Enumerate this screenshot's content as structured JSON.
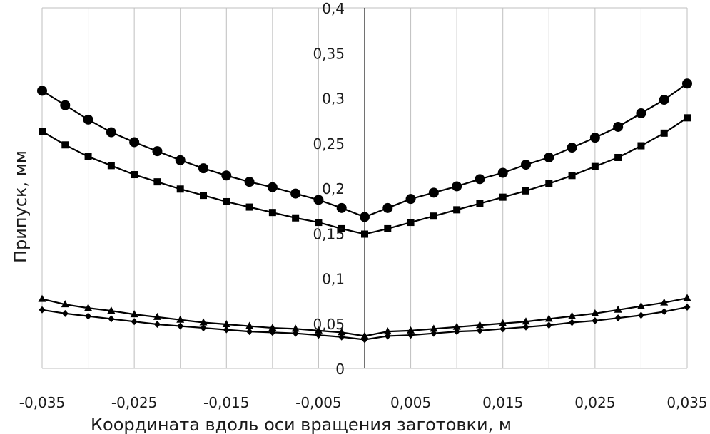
{
  "chart_data": {
    "type": "line",
    "xlabel": "Координата вдоль оси вращения заготовки, м",
    "ylabel": "Припуск, мм",
    "xlim": [
      -0.035,
      0.035
    ],
    "ylim": [
      0,
      0.4
    ],
    "grid": "vertical",
    "legend": "none",
    "x_ticks": [
      "-0,035",
      "-0,025",
      "-0,015",
      "-0,005",
      "0,005",
      "0,015",
      "0,025",
      "0,035"
    ],
    "y_ticks": [
      "0",
      "0,05",
      "0,1",
      "0,15",
      "0,2",
      "0,25",
      "0,3",
      "0,35",
      "0,4"
    ],
    "x": [
      -0.035,
      -0.0325,
      -0.03,
      -0.0275,
      -0.025,
      -0.0225,
      -0.02,
      -0.0175,
      -0.015,
      -0.0125,
      -0.01,
      -0.0075,
      -0.005,
      -0.0025,
      0,
      0.0025,
      0.005,
      0.0075,
      0.01,
      0.0125,
      0.015,
      0.0175,
      0.02,
      0.0225,
      0.025,
      0.0275,
      0.03,
      0.0325,
      0.035
    ],
    "series": [
      {
        "marker": "circle",
        "values": [
          0.308,
          0.292,
          0.276,
          0.262,
          0.251,
          0.241,
          0.231,
          0.222,
          0.214,
          0.207,
          0.201,
          0.194,
          0.187,
          0.178,
          0.168,
          0.178,
          0.188,
          0.195,
          0.202,
          0.21,
          0.217,
          0.226,
          0.234,
          0.245,
          0.256,
          0.268,
          0.283,
          0.298,
          0.316
        ]
      },
      {
        "marker": "square",
        "values": [
          0.263,
          0.248,
          0.235,
          0.225,
          0.215,
          0.207,
          0.199,
          0.192,
          0.185,
          0.179,
          0.173,
          0.167,
          0.162,
          0.155,
          0.149,
          0.155,
          0.162,
          0.169,
          0.176,
          0.183,
          0.19,
          0.197,
          0.205,
          0.214,
          0.224,
          0.234,
          0.247,
          0.261,
          0.278
        ]
      },
      {
        "marker": "triangle",
        "values": [
          0.077,
          0.071,
          0.067,
          0.064,
          0.06,
          0.057,
          0.054,
          0.051,
          0.049,
          0.047,
          0.045,
          0.044,
          0.042,
          0.04,
          0.036,
          0.041,
          0.042,
          0.044,
          0.046,
          0.048,
          0.05,
          0.052,
          0.055,
          0.058,
          0.061,
          0.065,
          0.069,
          0.073,
          0.078
        ]
      },
      {
        "marker": "diamond",
        "values": [
          0.065,
          0.061,
          0.058,
          0.055,
          0.052,
          0.049,
          0.047,
          0.045,
          0.043,
          0.041,
          0.04,
          0.039,
          0.037,
          0.035,
          0.032,
          0.036,
          0.037,
          0.039,
          0.041,
          0.042,
          0.044,
          0.046,
          0.048,
          0.051,
          0.053,
          0.056,
          0.059,
          0.063,
          0.068
        ]
      }
    ]
  }
}
